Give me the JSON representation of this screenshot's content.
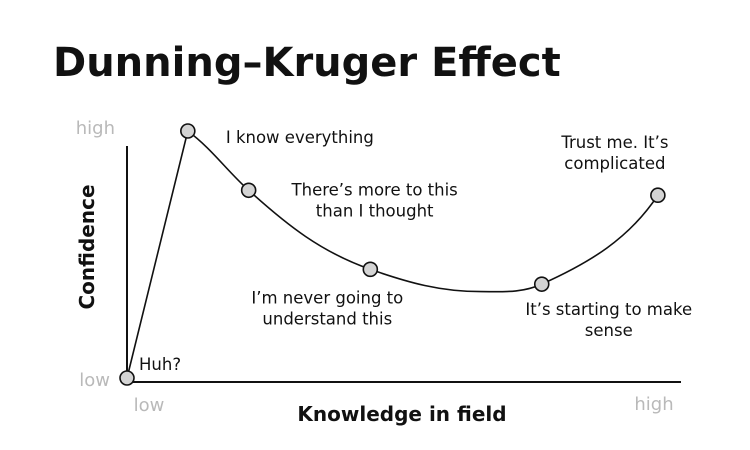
{
  "chart_data": {
    "type": "line",
    "title": "Dunning–Kruger Effect",
    "xlabel": "Knowledge in field",
    "ylabel": "Confidence",
    "x_ticks": [
      "low",
      "high"
    ],
    "y_ticks": [
      "low",
      "high"
    ],
    "xlim": [
      0,
      1
    ],
    "ylim": [
      0,
      1
    ],
    "grid": false,
    "points": [
      {
        "x": 0.0,
        "y": 0.0,
        "label": [
          "Huh?"
        ]
      },
      {
        "x": 0.11,
        "y": 1.0,
        "label": [
          "I know everything"
        ]
      },
      {
        "x": 0.22,
        "y": 0.76,
        "label": [
          "There’s more to this",
          "than I thought"
        ]
      },
      {
        "x": 0.44,
        "y": 0.44,
        "label": [
          "I’m never going to",
          "understand this"
        ]
      },
      {
        "x": 0.75,
        "y": 0.38,
        "label": [
          "It’s starting to make",
          "sense"
        ]
      },
      {
        "x": 0.96,
        "y": 0.74,
        "label": [
          "Trust me. It’s",
          "complicated"
        ]
      }
    ],
    "curve_trough": {
      "x": 0.64,
      "y": 0.35
    }
  }
}
